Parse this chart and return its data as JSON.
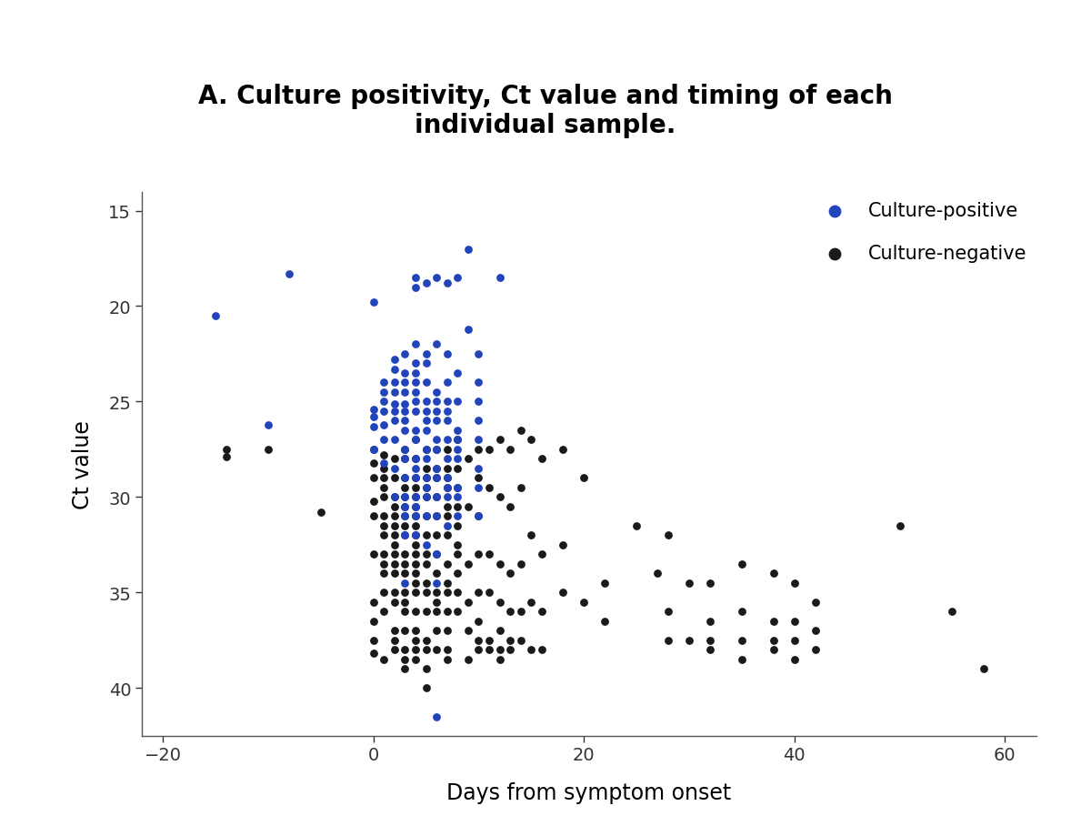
{
  "title": "A. Culture positivity, Ct value and timing of each\nindividual sample.",
  "xlabel": "Days from symptom onset",
  "ylabel": "Ct value",
  "xlim": [
    -22,
    63
  ],
  "ylim": [
    42.5,
    14.0
  ],
  "xticks": [
    -20,
    0,
    20,
    40,
    60
  ],
  "yticks": [
    15,
    20,
    25,
    30,
    35,
    40
  ],
  "background_color": "#ffffff",
  "culture_positive_color": "#2244bb",
  "culture_negative_color": "#1a1a1a",
  "marker_size": 40,
  "culture_positive": [
    [
      -15,
      20.5
    ],
    [
      -10,
      26.2
    ],
    [
      -8,
      18.3
    ],
    [
      0,
      19.8
    ],
    [
      0,
      25.4
    ],
    [
      0,
      25.8
    ],
    [
      0,
      26.3
    ],
    [
      0,
      27.5
    ],
    [
      1,
      24.0
    ],
    [
      1,
      24.5
    ],
    [
      1,
      25.0
    ],
    [
      1,
      25.5
    ],
    [
      1,
      26.2
    ],
    [
      1,
      27.0
    ],
    [
      1,
      28.2
    ],
    [
      2,
      22.8
    ],
    [
      2,
      23.3
    ],
    [
      2,
      24.0
    ],
    [
      2,
      24.5
    ],
    [
      2,
      25.1
    ],
    [
      2,
      25.5
    ],
    [
      2,
      26.0
    ],
    [
      2,
      27.0
    ],
    [
      2,
      28.5
    ],
    [
      2,
      30.0
    ],
    [
      3,
      22.5
    ],
    [
      3,
      23.5
    ],
    [
      3,
      24.0
    ],
    [
      3,
      24.5
    ],
    [
      3,
      25.1
    ],
    [
      3,
      25.5
    ],
    [
      3,
      26.0
    ],
    [
      3,
      26.5
    ],
    [
      3,
      27.5
    ],
    [
      3,
      28.0
    ],
    [
      3,
      29.0
    ],
    [
      3,
      30.0
    ],
    [
      3,
      30.5
    ],
    [
      3,
      31.0
    ],
    [
      3,
      32.0
    ],
    [
      3,
      34.5
    ],
    [
      4,
      18.5
    ],
    [
      4,
      19.0
    ],
    [
      4,
      22.0
    ],
    [
      4,
      23.0
    ],
    [
      4,
      23.5
    ],
    [
      4,
      24.0
    ],
    [
      4,
      24.5
    ],
    [
      4,
      25.0
    ],
    [
      4,
      25.5
    ],
    [
      4,
      26.5
    ],
    [
      4,
      27.0
    ],
    [
      4,
      28.0
    ],
    [
      4,
      28.5
    ],
    [
      4,
      29.0
    ],
    [
      4,
      30.0
    ],
    [
      4,
      30.5
    ],
    [
      4,
      31.0
    ],
    [
      4,
      32.0
    ],
    [
      5,
      18.8
    ],
    [
      5,
      22.5
    ],
    [
      5,
      23.0
    ],
    [
      5,
      24.0
    ],
    [
      5,
      25.0
    ],
    [
      5,
      25.5
    ],
    [
      5,
      26.0
    ],
    [
      5,
      26.5
    ],
    [
      5,
      27.5
    ],
    [
      5,
      28.0
    ],
    [
      5,
      29.0
    ],
    [
      5,
      29.5
    ],
    [
      5,
      30.0
    ],
    [
      5,
      31.0
    ],
    [
      5,
      32.5
    ],
    [
      6,
      18.5
    ],
    [
      6,
      22.0
    ],
    [
      6,
      24.5
    ],
    [
      6,
      25.0
    ],
    [
      6,
      25.5
    ],
    [
      6,
      26.0
    ],
    [
      6,
      27.0
    ],
    [
      6,
      27.5
    ],
    [
      6,
      28.5
    ],
    [
      6,
      29.0
    ],
    [
      6,
      30.0
    ],
    [
      6,
      31.0
    ],
    [
      6,
      33.0
    ],
    [
      6,
      34.5
    ],
    [
      7,
      18.8
    ],
    [
      7,
      22.5
    ],
    [
      7,
      24.0
    ],
    [
      7,
      25.0
    ],
    [
      7,
      25.5
    ],
    [
      7,
      26.0
    ],
    [
      7,
      27.0
    ],
    [
      7,
      28.0
    ],
    [
      7,
      29.0
    ],
    [
      7,
      29.5
    ],
    [
      7,
      30.0
    ],
    [
      7,
      31.5
    ],
    [
      8,
      18.5
    ],
    [
      8,
      23.5
    ],
    [
      8,
      25.0
    ],
    [
      8,
      26.5
    ],
    [
      8,
      27.0
    ],
    [
      8,
      27.5
    ],
    [
      8,
      28.0
    ],
    [
      8,
      29.5
    ],
    [
      8,
      30.0
    ],
    [
      8,
      31.0
    ],
    [
      9,
      17.0
    ],
    [
      9,
      21.2
    ],
    [
      10,
      22.5
    ],
    [
      10,
      24.0
    ],
    [
      10,
      25.0
    ],
    [
      10,
      26.0
    ],
    [
      10,
      27.0
    ],
    [
      10,
      28.5
    ],
    [
      10,
      29.5
    ],
    [
      10,
      31.0
    ],
    [
      12,
      18.5
    ],
    [
      6,
      41.5
    ]
  ],
  "culture_negative": [
    [
      -14,
      27.5
    ],
    [
      -14,
      27.9
    ],
    [
      -10,
      27.5
    ],
    [
      -5,
      30.8
    ],
    [
      0,
      27.5
    ],
    [
      0,
      28.2
    ],
    [
      0,
      29.0
    ],
    [
      0,
      30.2
    ],
    [
      0,
      31.0
    ],
    [
      0,
      33.0
    ],
    [
      0,
      35.5
    ],
    [
      0,
      36.5
    ],
    [
      0,
      37.5
    ],
    [
      0,
      38.2
    ],
    [
      1,
      27.8
    ],
    [
      1,
      28.5
    ],
    [
      1,
      29.0
    ],
    [
      1,
      29.5
    ],
    [
      1,
      30.0
    ],
    [
      1,
      31.0
    ],
    [
      1,
      31.5
    ],
    [
      1,
      32.0
    ],
    [
      1,
      33.0
    ],
    [
      1,
      33.5
    ],
    [
      1,
      34.0
    ],
    [
      1,
      35.0
    ],
    [
      1,
      36.0
    ],
    [
      1,
      38.5
    ],
    [
      2,
      28.0
    ],
    [
      2,
      29.0
    ],
    [
      2,
      30.0
    ],
    [
      2,
      30.5
    ],
    [
      2,
      31.0
    ],
    [
      2,
      31.5
    ],
    [
      2,
      32.0
    ],
    [
      2,
      32.5
    ],
    [
      2,
      33.0
    ],
    [
      2,
      33.5
    ],
    [
      2,
      34.0
    ],
    [
      2,
      35.0
    ],
    [
      2,
      35.5
    ],
    [
      2,
      37.0
    ],
    [
      2,
      37.5
    ],
    [
      2,
      38.0
    ],
    [
      3,
      27.5
    ],
    [
      3,
      28.0
    ],
    [
      3,
      29.0
    ],
    [
      3,
      29.5
    ],
    [
      3,
      30.0
    ],
    [
      3,
      30.5
    ],
    [
      3,
      31.0
    ],
    [
      3,
      31.5
    ],
    [
      3,
      32.0
    ],
    [
      3,
      33.0
    ],
    [
      3,
      33.5
    ],
    [
      3,
      34.0
    ],
    [
      3,
      35.0
    ],
    [
      3,
      35.5
    ],
    [
      3,
      36.0
    ],
    [
      3,
      37.0
    ],
    [
      3,
      38.0
    ],
    [
      3,
      38.5
    ],
    [
      3,
      39.0
    ],
    [
      4,
      27.0
    ],
    [
      4,
      28.0
    ],
    [
      4,
      29.0
    ],
    [
      4,
      29.5
    ],
    [
      4,
      30.0
    ],
    [
      4,
      30.5
    ],
    [
      4,
      31.0
    ],
    [
      4,
      31.5
    ],
    [
      4,
      32.0
    ],
    [
      4,
      32.5
    ],
    [
      4,
      33.0
    ],
    [
      4,
      33.5
    ],
    [
      4,
      34.0
    ],
    [
      4,
      34.5
    ],
    [
      4,
      35.0
    ],
    [
      4,
      36.0
    ],
    [
      4,
      37.0
    ],
    [
      4,
      37.5
    ],
    [
      4,
      38.0
    ],
    [
      4,
      38.5
    ],
    [
      5,
      27.5
    ],
    [
      5,
      28.5
    ],
    [
      5,
      29.0
    ],
    [
      5,
      29.5
    ],
    [
      5,
      30.0
    ],
    [
      5,
      31.0
    ],
    [
      5,
      32.0
    ],
    [
      5,
      33.0
    ],
    [
      5,
      33.5
    ],
    [
      5,
      34.5
    ],
    [
      5,
      35.0
    ],
    [
      5,
      36.0
    ],
    [
      5,
      37.5
    ],
    [
      5,
      38.0
    ],
    [
      5,
      39.0
    ],
    [
      5,
      40.0
    ],
    [
      6,
      27.5
    ],
    [
      6,
      28.5
    ],
    [
      6,
      29.0
    ],
    [
      6,
      30.0
    ],
    [
      6,
      31.0
    ],
    [
      6,
      32.0
    ],
    [
      6,
      33.0
    ],
    [
      6,
      34.0
    ],
    [
      6,
      35.0
    ],
    [
      6,
      35.5
    ],
    [
      6,
      36.0
    ],
    [
      6,
      37.0
    ],
    [
      6,
      38.0
    ],
    [
      7,
      27.5
    ],
    [
      7,
      28.5
    ],
    [
      7,
      29.0
    ],
    [
      7,
      29.5
    ],
    [
      7,
      30.5
    ],
    [
      7,
      31.0
    ],
    [
      7,
      32.0
    ],
    [
      7,
      33.5
    ],
    [
      7,
      34.5
    ],
    [
      7,
      35.0
    ],
    [
      7,
      36.0
    ],
    [
      7,
      37.0
    ],
    [
      7,
      38.0
    ],
    [
      7,
      38.5
    ],
    [
      8,
      27.0
    ],
    [
      8,
      28.5
    ],
    [
      8,
      29.5
    ],
    [
      8,
      30.5
    ],
    [
      8,
      31.5
    ],
    [
      8,
      32.5
    ],
    [
      8,
      33.0
    ],
    [
      8,
      34.0
    ],
    [
      8,
      35.0
    ],
    [
      8,
      36.0
    ],
    [
      9,
      28.0
    ],
    [
      9,
      30.5
    ],
    [
      9,
      33.5
    ],
    [
      9,
      35.5
    ],
    [
      9,
      37.0
    ],
    [
      9,
      38.5
    ],
    [
      10,
      27.5
    ],
    [
      10,
      29.0
    ],
    [
      10,
      31.0
    ],
    [
      10,
      33.0
    ],
    [
      10,
      35.0
    ],
    [
      10,
      36.5
    ],
    [
      10,
      37.5
    ],
    [
      10,
      38.0
    ],
    [
      11,
      27.5
    ],
    [
      11,
      29.5
    ],
    [
      11,
      33.0
    ],
    [
      11,
      35.0
    ],
    [
      11,
      37.5
    ],
    [
      11,
      38.0
    ],
    [
      12,
      27.0
    ],
    [
      12,
      30.0
    ],
    [
      12,
      33.5
    ],
    [
      12,
      35.5
    ],
    [
      12,
      37.0
    ],
    [
      12,
      38.0
    ],
    [
      12,
      38.5
    ],
    [
      13,
      27.5
    ],
    [
      13,
      30.5
    ],
    [
      13,
      34.0
    ],
    [
      13,
      36.0
    ],
    [
      13,
      37.5
    ],
    [
      13,
      38.0
    ],
    [
      14,
      26.5
    ],
    [
      14,
      29.5
    ],
    [
      14,
      33.5
    ],
    [
      14,
      36.0
    ],
    [
      14,
      37.5
    ],
    [
      15,
      27.0
    ],
    [
      15,
      32.0
    ],
    [
      15,
      35.5
    ],
    [
      15,
      38.0
    ],
    [
      16,
      28.0
    ],
    [
      16,
      33.0
    ],
    [
      16,
      36.0
    ],
    [
      16,
      38.0
    ],
    [
      18,
      27.5
    ],
    [
      18,
      32.5
    ],
    [
      18,
      35.0
    ],
    [
      20,
      29.0
    ],
    [
      20,
      35.5
    ],
    [
      22,
      34.5
    ],
    [
      22,
      36.5
    ],
    [
      25,
      31.5
    ],
    [
      27,
      34.0
    ],
    [
      28,
      32.0
    ],
    [
      28,
      36.0
    ],
    [
      28,
      37.5
    ],
    [
      30,
      34.5
    ],
    [
      30,
      37.5
    ],
    [
      32,
      34.5
    ],
    [
      32,
      36.5
    ],
    [
      32,
      37.5
    ],
    [
      32,
      38.0
    ],
    [
      35,
      33.5
    ],
    [
      35,
      36.0
    ],
    [
      35,
      37.5
    ],
    [
      35,
      38.5
    ],
    [
      38,
      34.0
    ],
    [
      38,
      36.5
    ],
    [
      38,
      37.5
    ],
    [
      38,
      38.0
    ],
    [
      40,
      34.5
    ],
    [
      40,
      36.5
    ],
    [
      40,
      37.5
    ],
    [
      40,
      38.5
    ],
    [
      42,
      35.5
    ],
    [
      42,
      37.0
    ],
    [
      42,
      38.0
    ],
    [
      50,
      31.5
    ],
    [
      55,
      36.0
    ],
    [
      58,
      39.0
    ]
  ]
}
